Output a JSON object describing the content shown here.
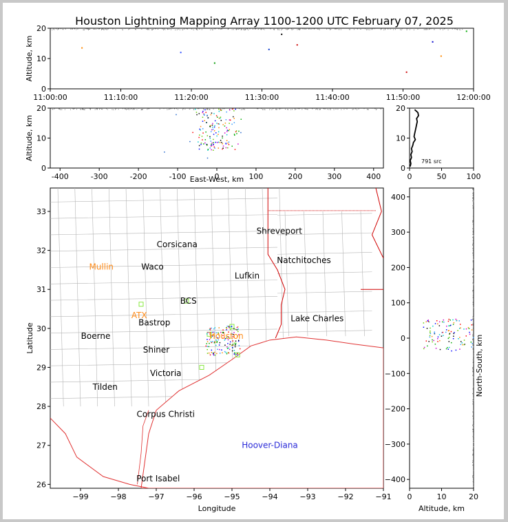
{
  "title": "Houston Lightning Mapping Array 1100-1200 UTC February 07, 2025",
  "colors": {
    "frame": "#c8c8c8",
    "border": "#d00000",
    "coast": "#e03030",
    "county": "#b4b4b4",
    "city_label": "#000000",
    "radar_label": "#ff8c1a",
    "station": "#2a2ad8",
    "network": "#88e840"
  },
  "chart_data": [
    {
      "id": "time-height",
      "type": "scatter",
      "xlabel": "",
      "ylabel": "Altitude, km",
      "xticks": [
        "11:00:00",
        "11:10:00",
        "11:20:00",
        "11:30:00",
        "11:40:00",
        "11:50:00",
        "12:00:00"
      ],
      "xlim_minutes": [
        0,
        60
      ],
      "ylim": [
        0,
        20
      ],
      "yticks": [
        0,
        10,
        20
      ],
      "points": [
        {
          "t": 4.5,
          "z": 13.5,
          "c": "#ff8800"
        },
        {
          "t": 18.5,
          "z": 12,
          "c": "#3050ff"
        },
        {
          "t": 23.3,
          "z": 8.5,
          "c": "#009900"
        },
        {
          "t": 31.0,
          "z": 13,
          "c": "#0033cc"
        },
        {
          "t": 32.8,
          "z": 18,
          "c": "#000000"
        },
        {
          "t": 35.0,
          "z": 14.5,
          "c": "#cc0000"
        },
        {
          "t": 50.5,
          "z": 5.5,
          "c": "#cc0000"
        },
        {
          "t": 54.2,
          "z": 15.5,
          "c": "#0000cc"
        },
        {
          "t": 55.4,
          "z": 10.8,
          "c": "#ff8800"
        },
        {
          "t": 59.0,
          "z": 19.0,
          "c": "#00aa00"
        }
      ]
    },
    {
      "id": "ew-height",
      "type": "scatter",
      "xlabel": "East-West, km",
      "ylabel": "Altitude, km",
      "xlim": [
        -425,
        425
      ],
      "ylim": [
        0,
        20
      ],
      "xticks": [
        -400,
        -300,
        -200,
        -100,
        0,
        100,
        200,
        300,
        400
      ],
      "yticks": [
        0,
        10,
        20
      ]
    },
    {
      "id": "altitude-histogram",
      "type": "line",
      "xlim": [
        0,
        100
      ],
      "ylim": [
        0,
        20
      ],
      "xticks": [
        0,
        50,
        100
      ],
      "yticks": [
        0,
        10,
        20
      ],
      "annotation": "791 src",
      "profile": [
        [
          1,
          0.5
        ],
        [
          2,
          1.5
        ],
        [
          1,
          2.5
        ],
        [
          3,
          3.5
        ],
        [
          2,
          4.5
        ],
        [
          4,
          5.5
        ],
        [
          3,
          6.5
        ],
        [
          5,
          7.5
        ],
        [
          6,
          8.5
        ],
        [
          9,
          9.5
        ],
        [
          7,
          10.5
        ],
        [
          8,
          11.5
        ],
        [
          9,
          12.5
        ],
        [
          10,
          13.5
        ],
        [
          11,
          14.5
        ],
        [
          12,
          15.5
        ],
        [
          11,
          16.5
        ],
        [
          14,
          17.5
        ],
        [
          13,
          18.5
        ],
        [
          8,
          19.5
        ]
      ]
    },
    {
      "id": "plan-view",
      "type": "scatter",
      "xlabel": "Longitude",
      "ylabel": "Latitude",
      "xlim": [
        -99.8,
        -91
      ],
      "ylim": [
        25.9,
        33.6
      ],
      "xticks": [
        -99,
        -98,
        -97,
        -96,
        -95,
        -94,
        -93,
        -92,
        -91
      ],
      "yticks": [
        26,
        27,
        28,
        29,
        30,
        31,
        32,
        33
      ],
      "cities": [
        {
          "name": "Shreveport",
          "lon": -93.75,
          "lat": 32.5,
          "c": "#000000"
        },
        {
          "name": "Corsicana",
          "lon": -96.45,
          "lat": 32.15,
          "c": "#000000"
        },
        {
          "name": "Natchitoches",
          "lon": -93.1,
          "lat": 31.75,
          "c": "#000000"
        },
        {
          "name": "Mullin",
          "lon": -98.45,
          "lat": 31.58,
          "c": "#ff8c1a"
        },
        {
          "name": "Waco",
          "lon": -97.1,
          "lat": 31.58,
          "c": "#000000"
        },
        {
          "name": "Lufkin",
          "lon": -94.6,
          "lat": 31.35,
          "c": "#000000"
        },
        {
          "name": "BCS",
          "lon": -96.15,
          "lat": 30.7,
          "c": "#000000"
        },
        {
          "name": "ATX",
          "lon": -97.45,
          "lat": 30.33,
          "c": "#ff8c1a"
        },
        {
          "name": "Lake Charles",
          "lon": -92.75,
          "lat": 30.25,
          "c": "#000000"
        },
        {
          "name": "Bastrop",
          "lon": -97.05,
          "lat": 30.15,
          "c": "#000000"
        },
        {
          "name": "Boerne",
          "lon": -98.6,
          "lat": 29.8,
          "c": "#000000"
        },
        {
          "name": "Houston",
          "lon": -95.15,
          "lat": 29.8,
          "c": "#ff8c1a"
        },
        {
          "name": "Shiner",
          "lon": -97.0,
          "lat": 29.45,
          "c": "#000000"
        },
        {
          "name": "Victoria",
          "lon": -96.75,
          "lat": 28.85,
          "c": "#000000"
        },
        {
          "name": "Tilden",
          "lon": -98.35,
          "lat": 28.5,
          "c": "#000000"
        },
        {
          "name": "Corpus Christi",
          "lon": -96.75,
          "lat": 27.8,
          "c": "#000000"
        },
        {
          "name": "Hoover-Diana",
          "lon": -94.0,
          "lat": 27.0,
          "c": "#2a2ad8"
        },
        {
          "name": "Port Isabel",
          "lon": -96.95,
          "lat": 26.15,
          "c": "#000000"
        }
      ]
    },
    {
      "id": "ns-height",
      "type": "scatter",
      "xlabel": "Altitude, km",
      "ylabel": "North-South, km",
      "xlim": [
        0,
        20
      ],
      "ylim": [
        -425,
        425
      ],
      "xticks": [
        0,
        10,
        20
      ],
      "yticks": [
        -400,
        -300,
        -200,
        -100,
        0,
        100,
        200,
        300,
        400
      ]
    }
  ]
}
